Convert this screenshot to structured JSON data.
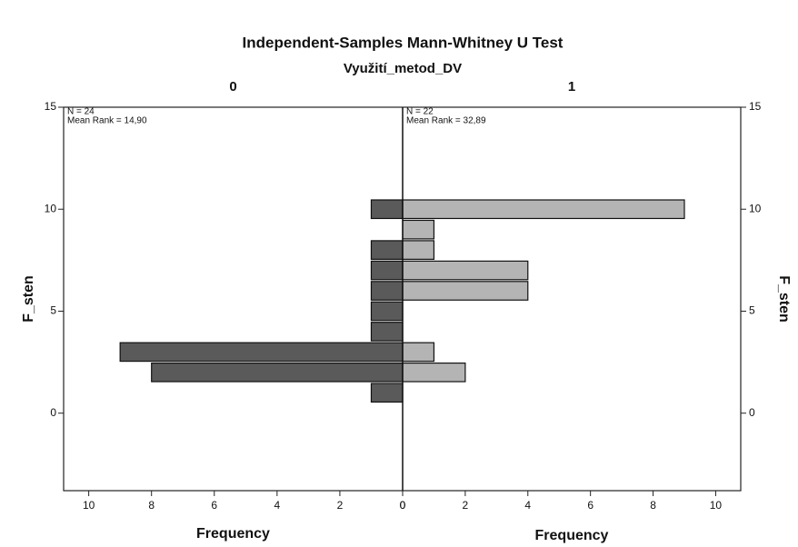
{
  "chart_data": {
    "type": "histogram",
    "title": "Independent-Samples Mann-Whitney U Test",
    "subtitle": "Využití_metod_DV",
    "ylabel": "F_sten",
    "xlabel": "Frequency",
    "bins": [
      0.5,
      1.5,
      2.5,
      3.5,
      4.5,
      5.5,
      6.5,
      7.5,
      8.5,
      9.5,
      10.5
    ],
    "ylim": [
      -3.8,
      15
    ],
    "yticks": [
      0,
      5,
      10,
      15
    ],
    "xlim": [
      0,
      10.8
    ],
    "xticks": [
      0,
      2,
      4,
      6,
      8,
      10
    ],
    "series": [
      {
        "name": "0",
        "color": "#5a5a5a",
        "n_label": "N = 24",
        "mean_rank_label": "Mean Rank = 14,90",
        "values": [
          1,
          8,
          9,
          1,
          1,
          1,
          1,
          1,
          0,
          1
        ]
      },
      {
        "name": "1",
        "color": "#b4b4b4",
        "n_label": "N = 22",
        "mean_rank_label": "Mean Rank = 32,89",
        "values": [
          0,
          2,
          1,
          0,
          0,
          4,
          4,
          1,
          1,
          9
        ]
      }
    ]
  }
}
